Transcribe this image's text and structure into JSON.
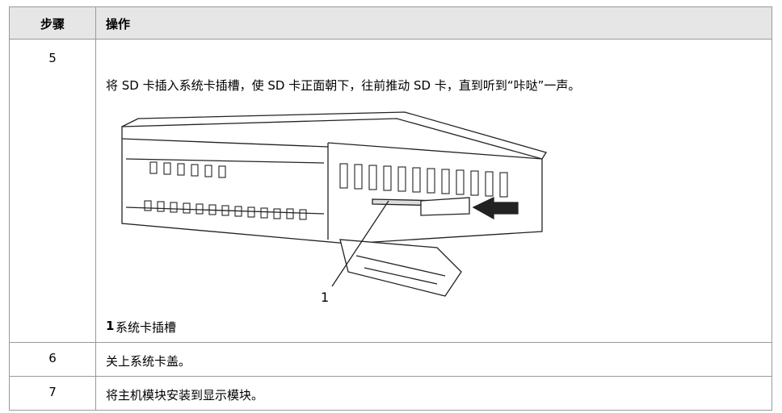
{
  "table": {
    "header": [
      "步骤",
      "操作"
    ],
    "rows": [
      {
        "step": "5",
        "text": "将 SD 卡插入系统卡插槽，使 SD 卡正面朝下，往前推动 SD 卡，直到听到“咔哒”一声。",
        "figure": {
          "callout": "1"
        },
        "caption": {
          "number": "1",
          "label": "系统卡插槽"
        }
      },
      {
        "step": "6",
        "text": "关上系统卡盖。"
      },
      {
        "step": "7",
        "text": "将主机模块安装到显示模块。"
      }
    ]
  }
}
